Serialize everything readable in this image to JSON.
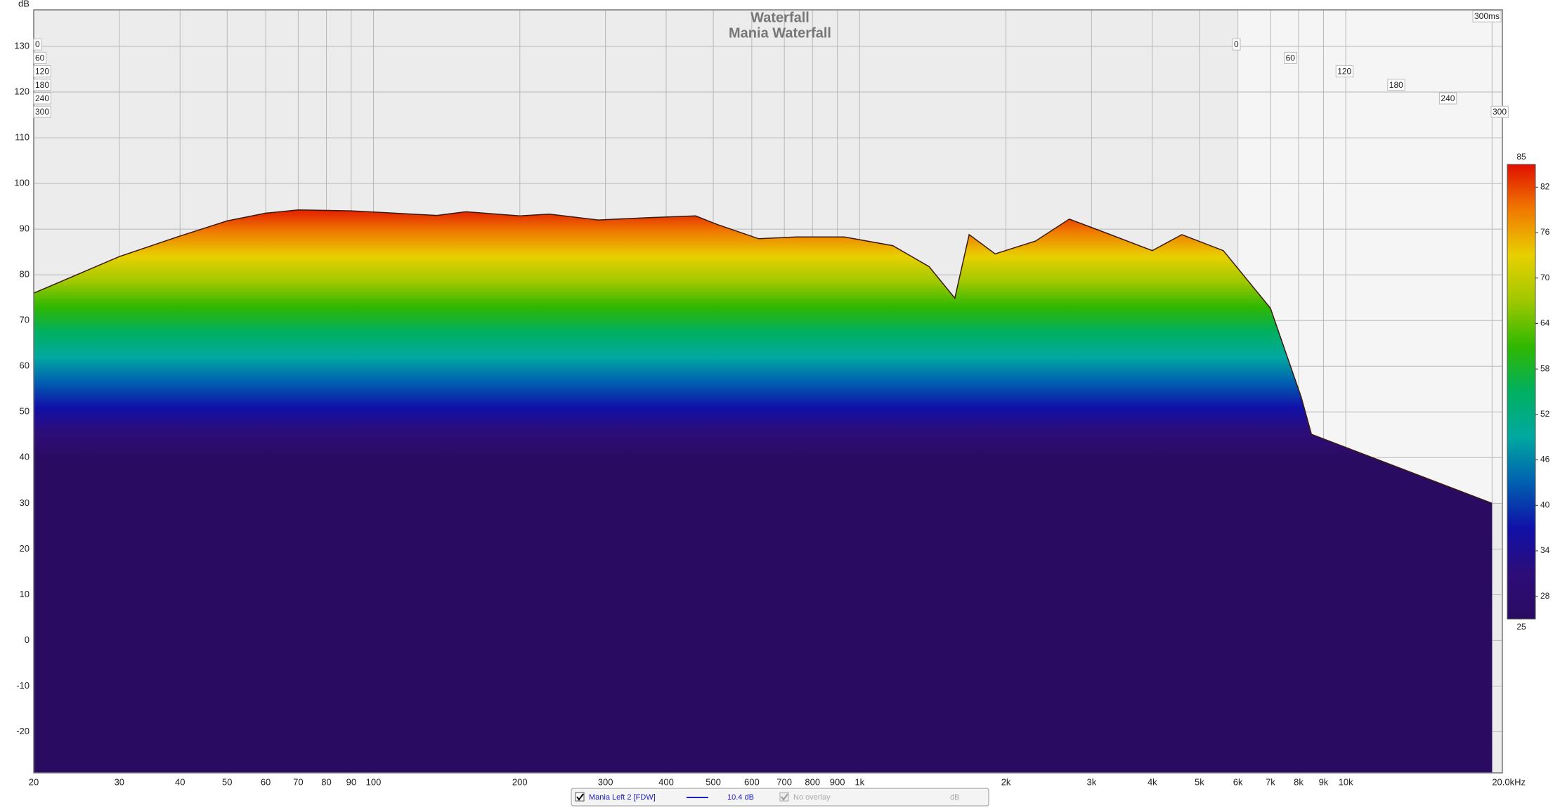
{
  "chart_data": {
    "type": "waterfall",
    "title": "Waterfall",
    "subtitle": "Mania Waterfall",
    "y_label": "dB",
    "ylim": [
      -29,
      138
    ],
    "yticks": [
      -20,
      -10,
      0,
      10,
      20,
      30,
      40,
      50,
      60,
      70,
      80,
      90,
      100,
      110,
      120,
      130
    ],
    "xlim": [
      20,
      21000
    ],
    "log_x": true,
    "grid": true,
    "xticks": [
      20,
      30,
      40,
      50,
      60,
      70,
      80,
      90,
      100,
      200,
      300,
      400,
      500,
      600,
      700,
      800,
      900,
      {
        "value": 1000,
        "label": "1k"
      },
      {
        "value": 2000,
        "label": "2k"
      },
      {
        "value": 3000,
        "label": "3k"
      },
      {
        "value": 4000,
        "label": "4k"
      },
      {
        "value": 5000,
        "label": "5k"
      },
      {
        "value": 6000,
        "label": "6k"
      },
      {
        "value": 7000,
        "label": "7k"
      },
      {
        "value": 8000,
        "label": "8k"
      },
      {
        "value": 9000,
        "label": "9k"
      },
      {
        "value": 10000,
        "label": "10k"
      },
      {
        "value": 20000,
        "label": "20.0kHz"
      }
    ],
    "time_ticks": [
      0,
      60,
      120,
      180,
      240,
      300
    ],
    "time_end_label": "300ms",
    "colorscale": {
      "lim": [
        25,
        85
      ],
      "ticks": [
        28,
        34,
        40,
        46,
        52,
        58,
        64,
        70,
        76,
        82
      ],
      "colors": [
        "#2a0b62",
        "#2d0d78",
        "#1010a8",
        "#0060b0",
        "#00a8a0",
        "#00b060",
        "#30b800",
        "#a0c800",
        "#e8d000",
        "#f07a00",
        "#e01000"
      ]
    },
    "series": [
      {
        "name": "Mania Left 2 [FDW]",
        "color": "#2020c0",
        "offset_label": "10.4 dB",
        "x": [
          20,
          30,
          40,
          50,
          60,
          70,
          90,
          135,
          155,
          200,
          230,
          290,
          365,
          460,
          510,
          620,
          740,
          930,
          1170,
          1390,
          1570,
          1680,
          1900,
          2300,
          2700,
          3170,
          4000,
          4600,
          5600,
          7000,
          8100,
          8500,
          20000
        ],
        "values": [
          76,
          84,
          88.5,
          91.8,
          93.5,
          94.2,
          94,
          93,
          93.8,
          92.9,
          93.3,
          92,
          92.5,
          92.9,
          91,
          87.9,
          88.3,
          88.3,
          86.4,
          81.8,
          74.9,
          88.8,
          84.6,
          87.4,
          92.2,
          89.4,
          85.3,
          88.8,
          85.3,
          72.7,
          53.2,
          45.1,
          30
        ]
      }
    ],
    "overlay_label": "No overlay",
    "overlay_unit": "dB"
  }
}
